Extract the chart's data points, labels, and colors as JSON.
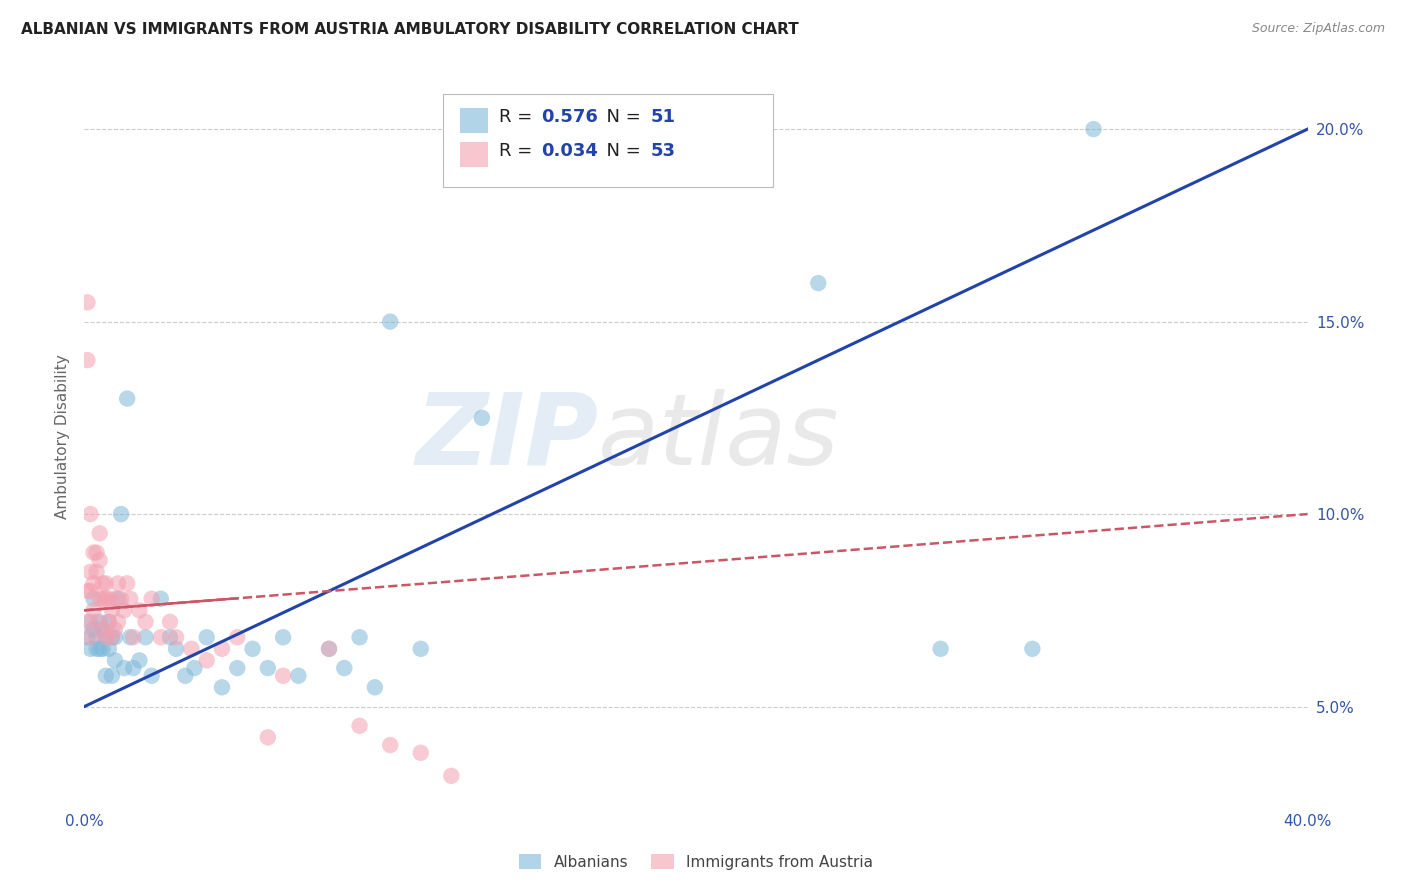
{
  "title": "ALBANIAN VS IMMIGRANTS FROM AUSTRIA AMBULATORY DISABILITY CORRELATION CHART",
  "source": "Source: ZipAtlas.com",
  "ylabel": "Ambulatory Disability",
  "xlim": [
    0.0,
    0.4
  ],
  "ylim": [
    0.025,
    0.215
  ],
  "yticks_right": [
    0.05,
    0.1,
    0.15,
    0.2
  ],
  "ytick_labels_right": [
    "5.0%",
    "10.0%",
    "15.0%",
    "20.0%"
  ],
  "R_blue": 0.576,
  "N_blue": 51,
  "R_pink": 0.034,
  "N_pink": 53,
  "blue_color": "#7EB8D9",
  "pink_color": "#F4A0B0",
  "blue_line_color": "#2244AA",
  "pink_line_color": "#CC5566",
  "watermark": "ZIPatlas",
  "blue_line_x0": 0.0,
  "blue_line_y0": 0.05,
  "blue_line_x1": 0.4,
  "blue_line_y1": 0.2,
  "pink_line_x0": 0.0,
  "pink_line_y0": 0.075,
  "pink_line_x1": 0.4,
  "pink_line_y1": 0.1,
  "blue_x": [
    0.001,
    0.002,
    0.002,
    0.003,
    0.003,
    0.004,
    0.004,
    0.005,
    0.005,
    0.006,
    0.006,
    0.007,
    0.007,
    0.008,
    0.008,
    0.009,
    0.009,
    0.01,
    0.01,
    0.011,
    0.012,
    0.013,
    0.014,
    0.015,
    0.016,
    0.018,
    0.02,
    0.022,
    0.025,
    0.028,
    0.03,
    0.033,
    0.036,
    0.04,
    0.045,
    0.05,
    0.055,
    0.06,
    0.065,
    0.07,
    0.08,
    0.085,
    0.09,
    0.095,
    0.1,
    0.11,
    0.13,
    0.24,
    0.28,
    0.33,
    0.31
  ],
  "blue_y": [
    0.068,
    0.072,
    0.065,
    0.078,
    0.07,
    0.065,
    0.068,
    0.072,
    0.065,
    0.07,
    0.065,
    0.068,
    0.058,
    0.072,
    0.065,
    0.068,
    0.058,
    0.068,
    0.062,
    0.078,
    0.1,
    0.06,
    0.13,
    0.068,
    0.06,
    0.062,
    0.068,
    0.058,
    0.078,
    0.068,
    0.065,
    0.058,
    0.06,
    0.068,
    0.055,
    0.06,
    0.065,
    0.06,
    0.068,
    0.058,
    0.065,
    0.06,
    0.068,
    0.055,
    0.15,
    0.065,
    0.125,
    0.16,
    0.065,
    0.2,
    0.065
  ],
  "pink_x": [
    0.001,
    0.001,
    0.001,
    0.001,
    0.002,
    0.002,
    0.002,
    0.002,
    0.003,
    0.003,
    0.003,
    0.004,
    0.004,
    0.004,
    0.005,
    0.005,
    0.005,
    0.006,
    0.006,
    0.006,
    0.007,
    0.007,
    0.007,
    0.008,
    0.008,
    0.009,
    0.009,
    0.01,
    0.01,
    0.011,
    0.011,
    0.012,
    0.013,
    0.014,
    0.015,
    0.016,
    0.018,
    0.02,
    0.022,
    0.025,
    0.028,
    0.03,
    0.035,
    0.04,
    0.045,
    0.05,
    0.06,
    0.065,
    0.08,
    0.09,
    0.1,
    0.11,
    0.12
  ],
  "pink_y": [
    0.155,
    0.14,
    0.08,
    0.072,
    0.1,
    0.085,
    0.08,
    0.068,
    0.09,
    0.082,
    0.075,
    0.09,
    0.085,
    0.072,
    0.095,
    0.088,
    0.078,
    0.082,
    0.078,
    0.07,
    0.082,
    0.078,
    0.068,
    0.078,
    0.072,
    0.075,
    0.068,
    0.078,
    0.07,
    0.082,
    0.072,
    0.078,
    0.075,
    0.082,
    0.078,
    0.068,
    0.075,
    0.072,
    0.078,
    0.068,
    0.072,
    0.068,
    0.065,
    0.062,
    0.065,
    0.068,
    0.042,
    0.058,
    0.065,
    0.045,
    0.04,
    0.038,
    0.032
  ]
}
